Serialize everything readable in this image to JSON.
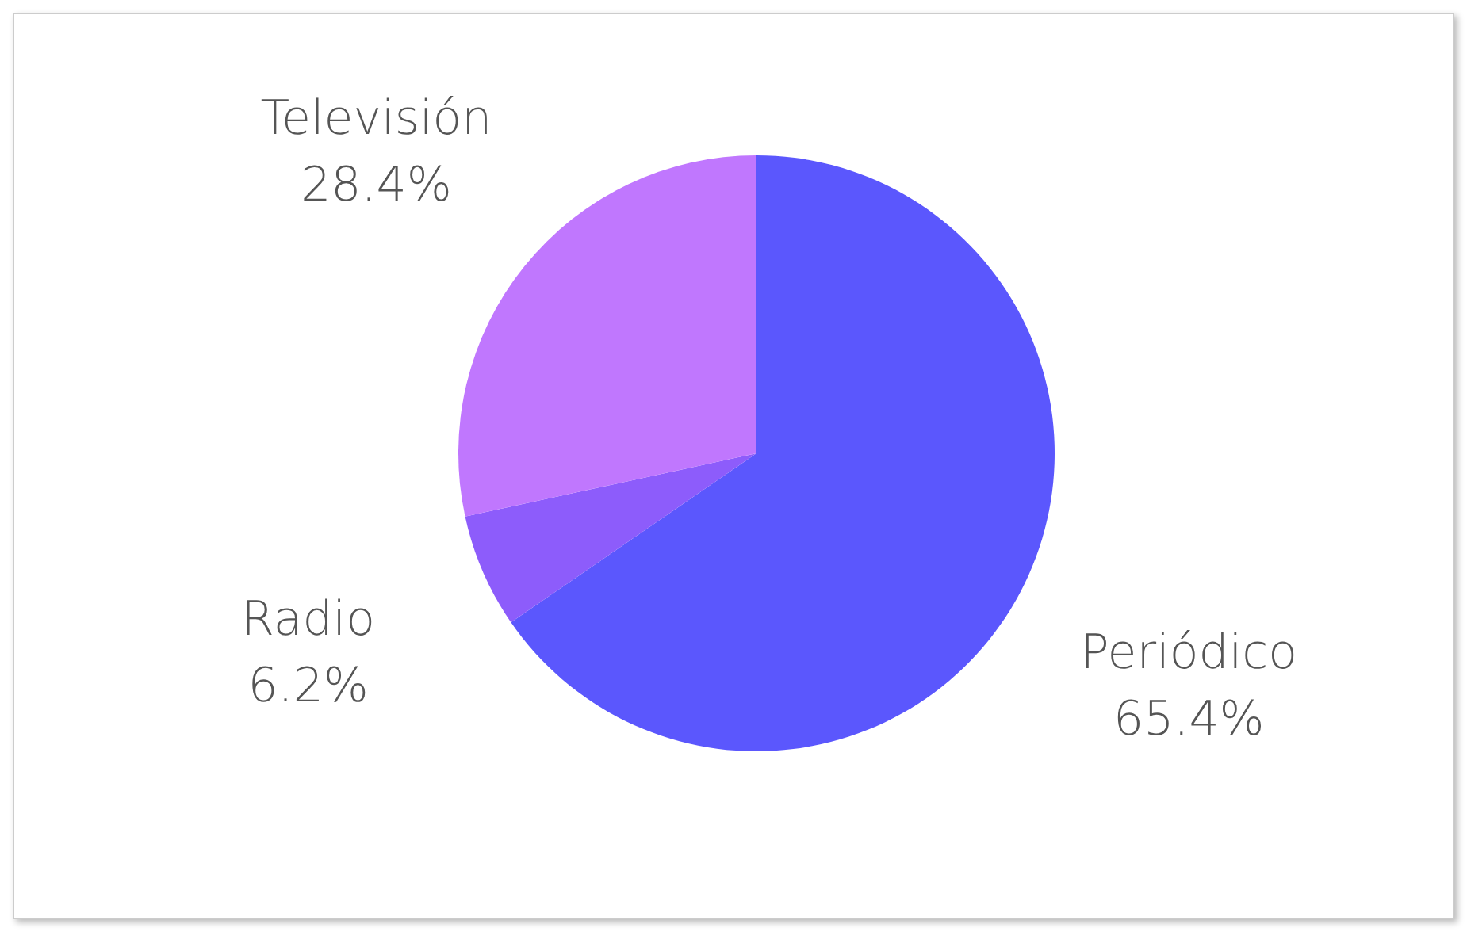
{
  "chart_data": {
    "type": "pie",
    "categories": [
      "Periódico",
      "Radio",
      "Televisión"
    ],
    "values": [
      65.4,
      6.2,
      28.4
    ],
    "colors": [
      "#5b57fd",
      "#8d5cfb",
      "#c077fe"
    ],
    "value_labels": [
      "65.4%",
      "6.2%",
      "28.4%"
    ],
    "legend": false
  }
}
